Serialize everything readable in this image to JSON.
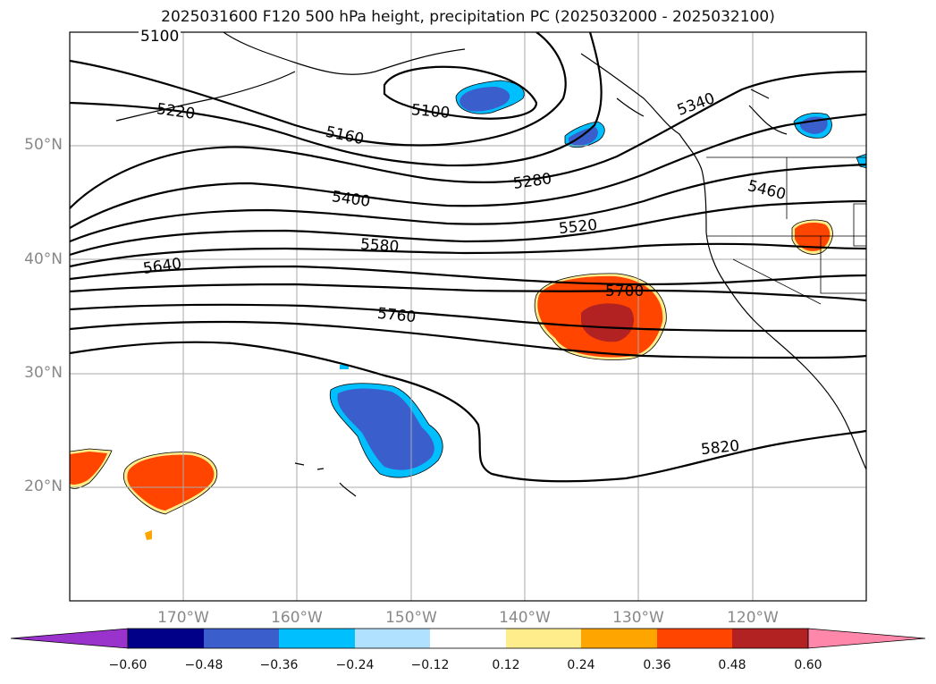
{
  "title": "2025031600 F120 500 hPa height, precipitation PC (2025032000 - 2025032100)",
  "lat_labels": [
    "50°N",
    "40°N",
    "30°N",
    "20°N"
  ],
  "lon_labels": [
    "170°W",
    "160°W",
    "150°W",
    "140°W",
    "130°W",
    "120°W"
  ],
  "contour_labels": [
    "5100",
    "5220",
    "5160",
    "5100",
    "5280",
    "5400",
    "5580",
    "5640",
    "5520",
    "5700",
    "5760",
    "5820",
    "5340",
    "5460"
  ],
  "colorbar": {
    "ticks": [
      "−0.60",
      "−0.48",
      "−0.36",
      "−0.24",
      "−0.12",
      "0.12",
      "0.24",
      "0.36",
      "0.48",
      "0.60"
    ],
    "colors": [
      "#9933cc",
      "#000088",
      "#3a5fcd",
      "#00bfff",
      "#b0e2ff",
      "#ffffff",
      "#ffec8b",
      "#ffa500",
      "#ff4500",
      "#b22222",
      "#ff88aa"
    ]
  }
}
